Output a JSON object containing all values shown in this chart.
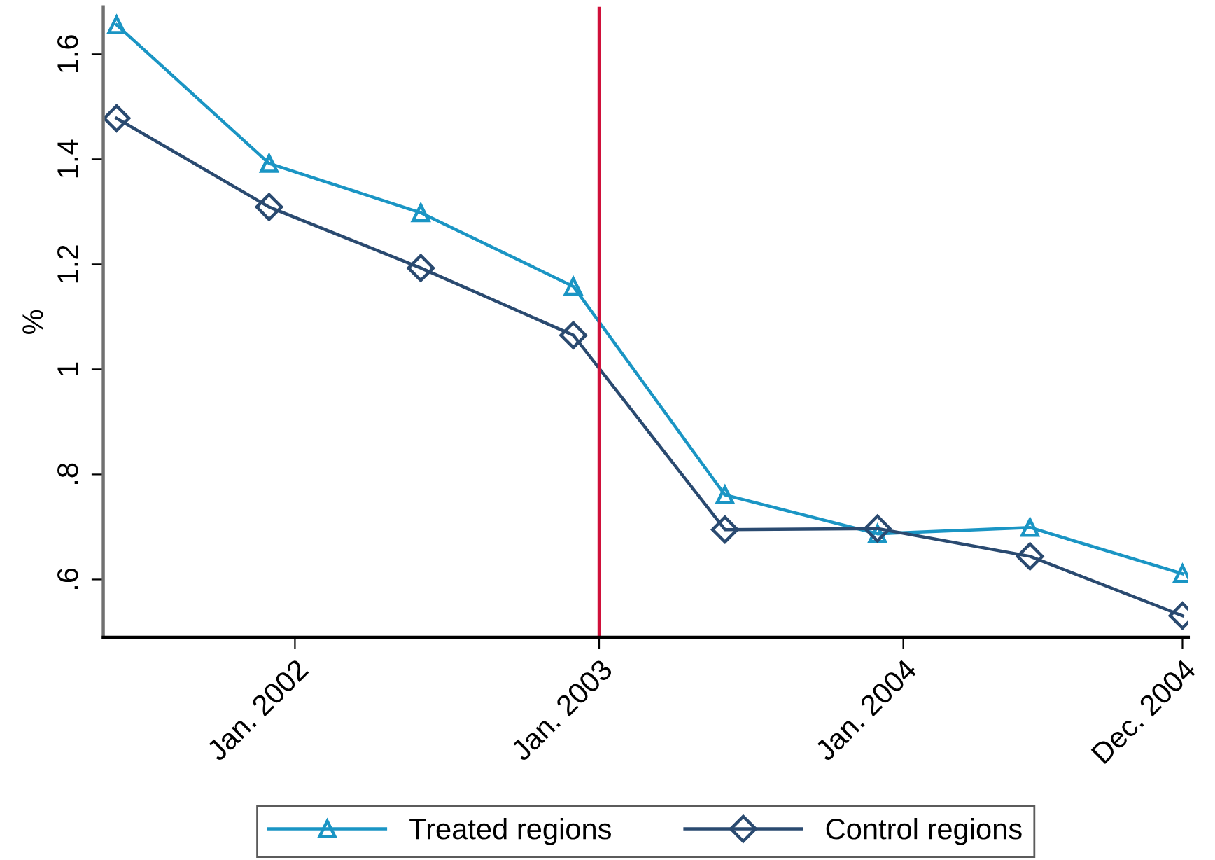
{
  "chart_data": {
    "type": "line",
    "ylabel": "%",
    "x": [
      "2001-06-01",
      "2001-12-01",
      "2002-06-01",
      "2002-12-01",
      "2003-06-01",
      "2003-12-01",
      "2004-06-01",
      "2004-12-01"
    ],
    "series": [
      {
        "name": "Treated regions",
        "color": "#1a95c4",
        "marker": "triangle",
        "values": [
          1.656,
          1.392,
          1.298,
          1.158,
          0.761,
          0.687,
          0.699,
          0.611
        ]
      },
      {
        "name": "Control regions",
        "color": "#2a4a70",
        "marker": "diamond",
        "values": [
          1.478,
          1.309,
          1.193,
          1.065,
          0.695,
          0.697,
          0.644,
          0.531
        ]
      }
    ],
    "xlim": [
      "2001-05-16",
      "2004-12-08"
    ],
    "xticks": [
      {
        "value": "2002-01-01",
        "label": "Jan. 2002"
      },
      {
        "value": "2003-01-01",
        "label": "Jan. 2003"
      },
      {
        "value": "2004-01-01",
        "label": "Jan. 2004"
      },
      {
        "value": "2004-12-01",
        "label": "Dec. 2004"
      }
    ],
    "ylim": [
      0.49,
      1.69
    ],
    "yticks": [
      1.6,
      1.4,
      1.2,
      1,
      {
        "value": 0.8,
        "label": ".8"
      },
      {
        "value": 0.6,
        "label": ".6"
      }
    ],
    "ref_lines": [
      {
        "axis": "x",
        "value": "2003-01-01",
        "color": "#d0103a"
      }
    ],
    "grid": false,
    "legend": "bottom",
    "line_style": "solid"
  }
}
